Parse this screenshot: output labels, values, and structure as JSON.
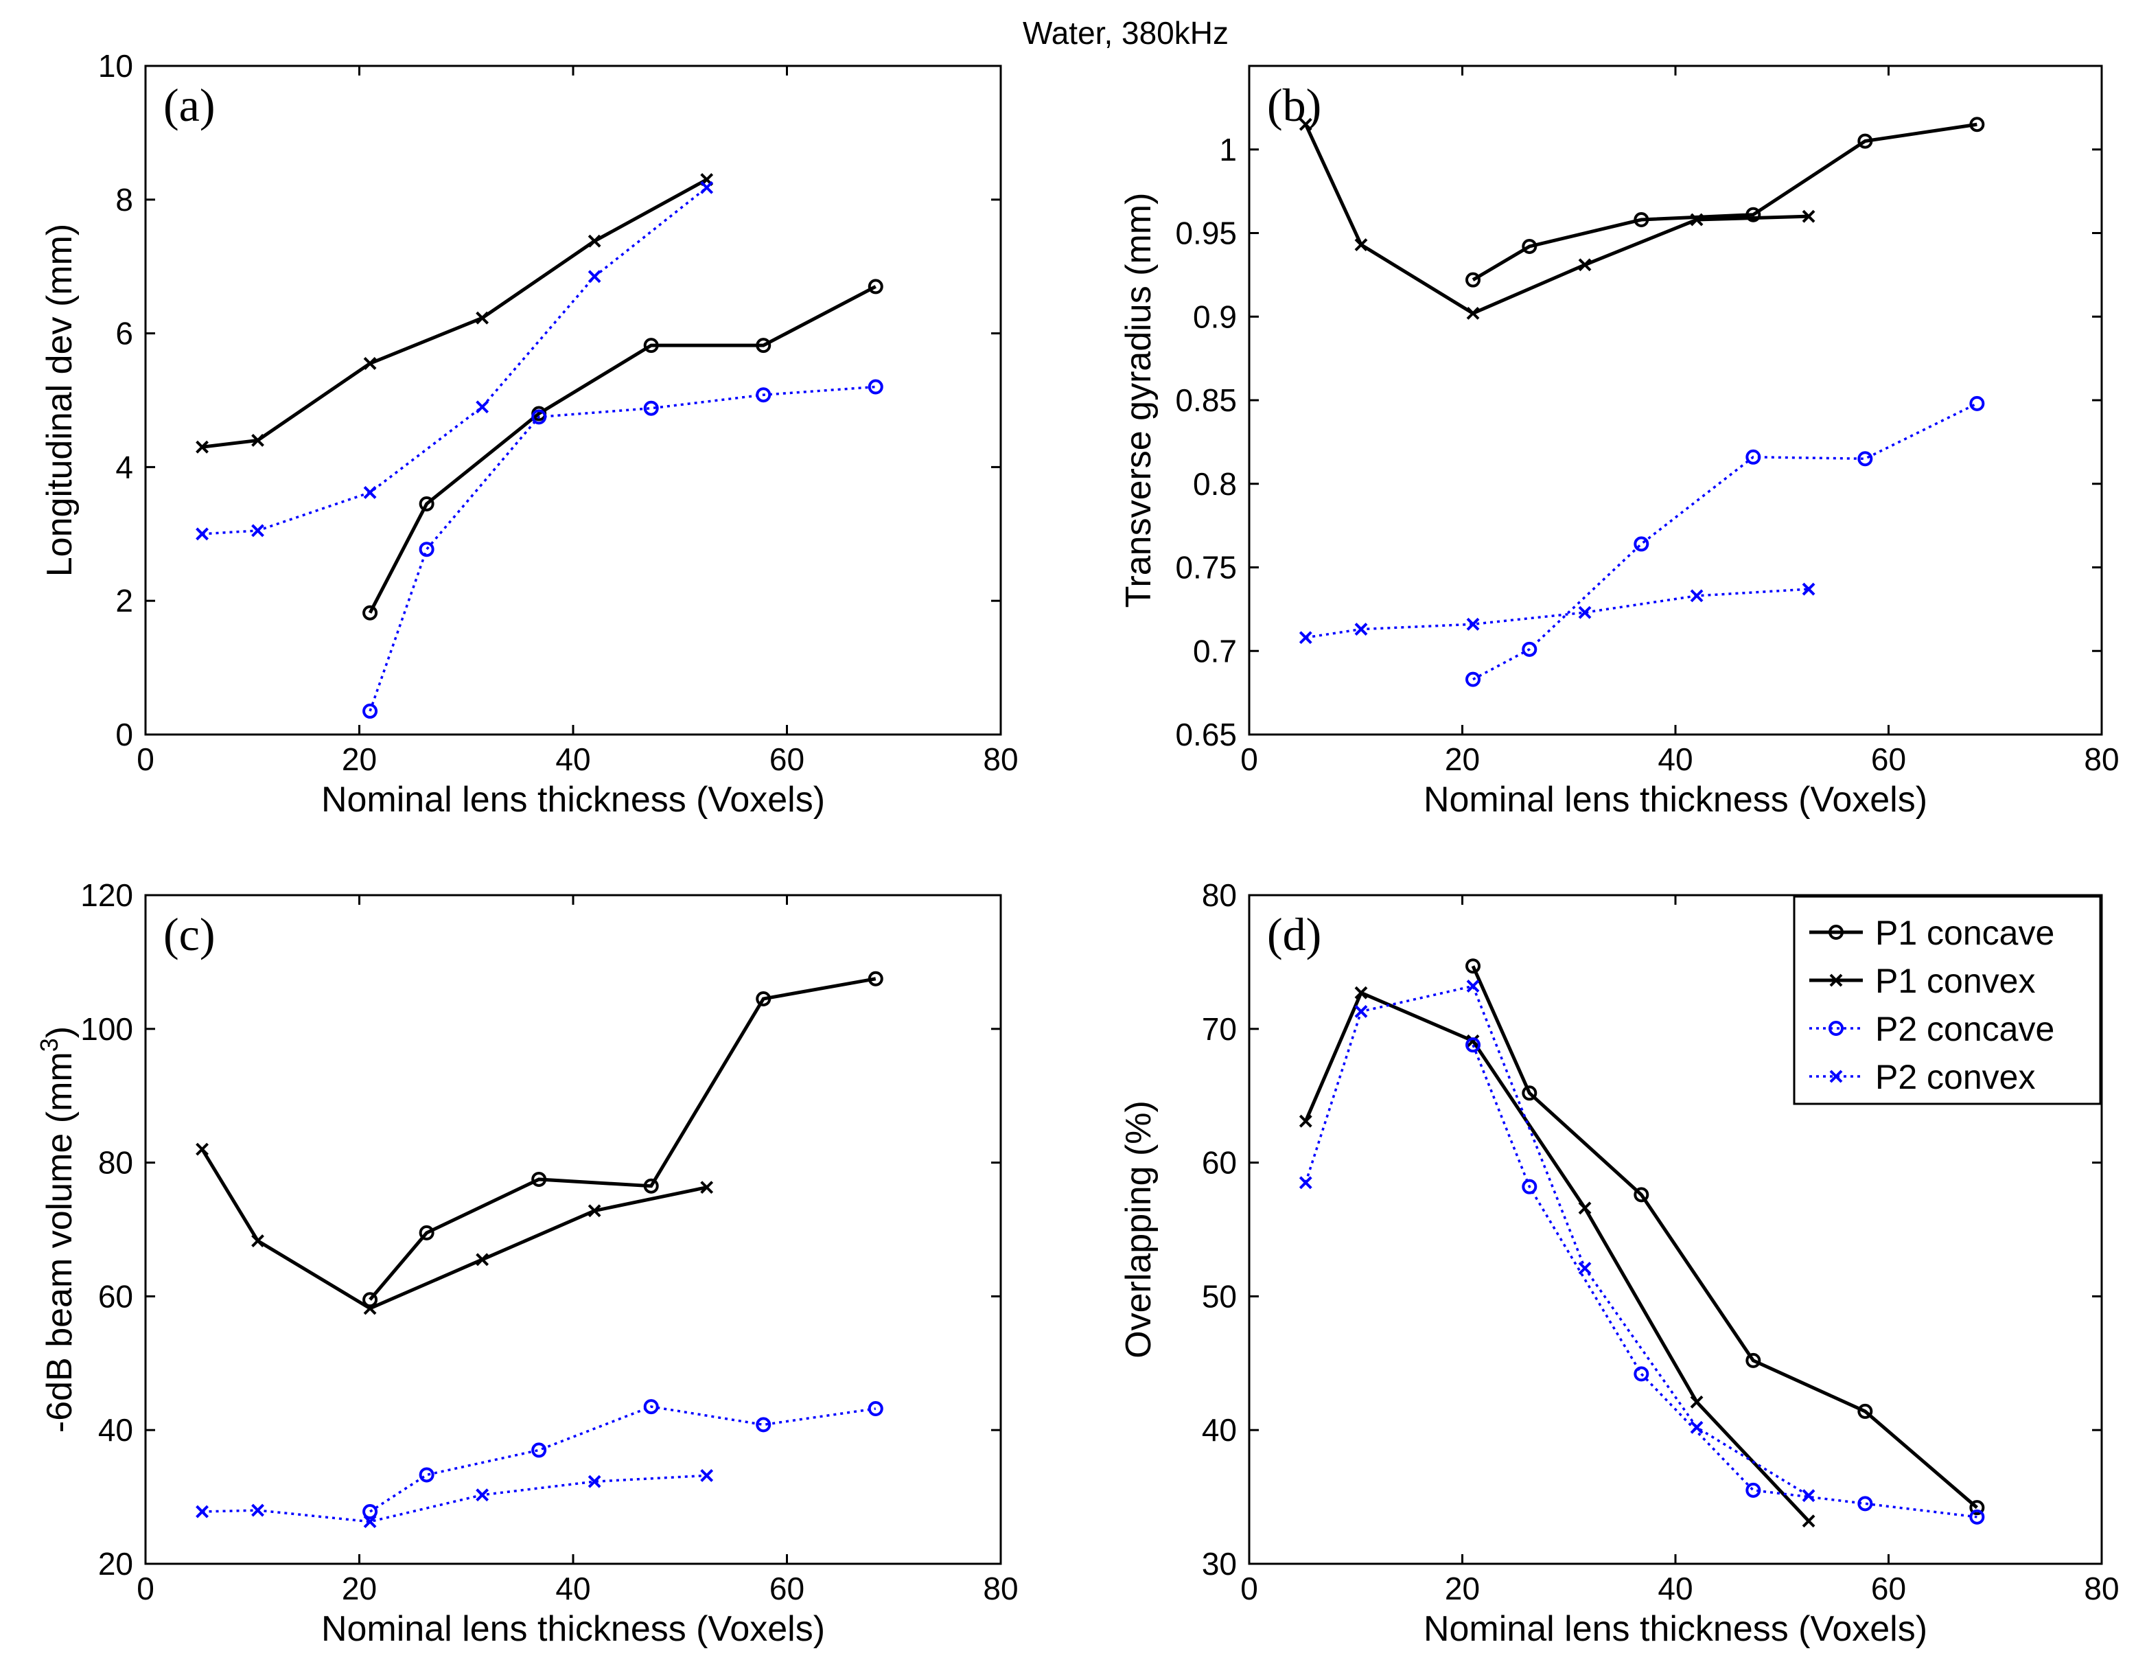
{
  "figure_title": "Water, 380kHz",
  "colors": {
    "P1": "#000000",
    "P2": "#0000ff"
  },
  "legend": {
    "placement": "top-right of panel (d)",
    "entries": [
      "P1 concave",
      "P1 convex",
      "P2 concave",
      "P2 convex"
    ]
  },
  "chart_data": [
    {
      "type": "line",
      "panel": "(a)",
      "xlabel": "Nominal lens thickness (Voxels)",
      "ylabel": "Longitudinal dev (mm)",
      "xlim": [
        0,
        80
      ],
      "ylim": [
        0,
        10
      ],
      "xticks": [
        0,
        20,
        40,
        60,
        80
      ],
      "yticks": [
        0,
        2,
        4,
        6,
        8,
        10
      ],
      "series": [
        {
          "name": "P1 concave",
          "marker": "o",
          "style": "solid",
          "color": "#000000",
          "x": [
            21,
            26.3,
            36.8,
            47.3,
            57.8,
            68.3
          ],
          "y": [
            1.82,
            3.45,
            4.8,
            5.82,
            5.82,
            6.7
          ]
        },
        {
          "name": "P1 convex",
          "marker": "x",
          "style": "solid",
          "color": "#000000",
          "x": [
            5.3,
            10.5,
            21,
            31.5,
            42,
            52.5
          ],
          "y": [
            4.3,
            4.4,
            5.55,
            6.23,
            7.38,
            8.3
          ]
        },
        {
          "name": "P2 concave",
          "marker": "o",
          "style": "dotted",
          "color": "#0000ff",
          "x": [
            21,
            26.3,
            36.8,
            47.3,
            57.8,
            68.3
          ],
          "y": [
            0.35,
            2.77,
            4.75,
            4.88,
            5.08,
            5.2
          ]
        },
        {
          "name": "P2 convex",
          "marker": "x",
          "style": "dotted",
          "color": "#0000ff",
          "x": [
            5.3,
            10.5,
            21,
            31.5,
            42,
            52.5
          ],
          "y": [
            3.0,
            3.05,
            3.62,
            4.9,
            6.85,
            8.18
          ]
        }
      ]
    },
    {
      "type": "line",
      "panel": "(b)",
      "xlabel": "Nominal lens thickness (Voxels)",
      "ylabel": "Transverse gyradius (mm)",
      "xlim": [
        0,
        80
      ],
      "ylim": [
        0.65,
        1.05
      ],
      "xticks": [
        0,
        20,
        40,
        60,
        80
      ],
      "yticks": [
        0.65,
        0.7,
        0.75,
        0.8,
        0.85,
        0.9,
        0.95,
        1
      ],
      "series": [
        {
          "name": "P1 concave",
          "marker": "o",
          "style": "solid",
          "color": "#000000",
          "x": [
            21,
            26.3,
            36.8,
            47.3,
            57.8,
            68.3
          ],
          "y": [
            0.922,
            0.942,
            0.958,
            0.961,
            1.005,
            1.015
          ]
        },
        {
          "name": "P1 convex",
          "marker": "x",
          "style": "solid",
          "color": "#000000",
          "x": [
            5.3,
            10.5,
            21,
            31.5,
            42,
            52.5
          ],
          "y": [
            1.015,
            0.943,
            0.902,
            0.931,
            0.958,
            0.96
          ]
        },
        {
          "name": "P2 concave",
          "marker": "o",
          "style": "dotted",
          "color": "#0000ff",
          "x": [
            21,
            26.3,
            36.8,
            47.3,
            57.8,
            68.3
          ],
          "y": [
            0.683,
            0.701,
            0.764,
            0.816,
            0.815,
            0.848
          ]
        },
        {
          "name": "P2 convex",
          "marker": "x",
          "style": "dotted",
          "color": "#0000ff",
          "x": [
            5.3,
            10.5,
            21,
            31.5,
            42,
            52.5
          ],
          "y": [
            0.708,
            0.713,
            0.716,
            0.723,
            0.733,
            0.737
          ]
        }
      ]
    },
    {
      "type": "line",
      "panel": "(c)",
      "xlabel": "Nominal lens thickness (Voxels)",
      "ylabel": "-6dB beam volume (mm",
      "ylabel_sup": "3",
      "ylabel_close": ")",
      "xlim": [
        0,
        80
      ],
      "ylim": [
        20,
        120
      ],
      "xticks": [
        0,
        20,
        40,
        60,
        80
      ],
      "yticks": [
        20,
        40,
        60,
        80,
        100,
        120
      ],
      "series": [
        {
          "name": "P1 concave",
          "marker": "o",
          "style": "solid",
          "color": "#000000",
          "x": [
            21,
            26.3,
            36.8,
            47.3,
            57.8,
            68.3
          ],
          "y": [
            59.5,
            69.5,
            77.5,
            76.5,
            104.5,
            107.5
          ]
        },
        {
          "name": "P1 convex",
          "marker": "x",
          "style": "solid",
          "color": "#000000",
          "x": [
            5.3,
            10.5,
            21,
            31.5,
            42,
            52.5
          ],
          "y": [
            82,
            68.3,
            58.2,
            65.5,
            72.8,
            76.3
          ]
        },
        {
          "name": "P2 concave",
          "marker": "o",
          "style": "dotted",
          "color": "#0000ff",
          "x": [
            21,
            26.3,
            36.8,
            47.3,
            57.8,
            68.3
          ],
          "y": [
            27.8,
            33.3,
            37,
            43.5,
            40.8,
            43.2
          ]
        },
        {
          "name": "P2 convex",
          "marker": "x",
          "style": "dotted",
          "color": "#0000ff",
          "x": [
            5.3,
            10.5,
            21,
            31.5,
            42,
            52.5
          ],
          "y": [
            27.8,
            28,
            26.3,
            30.3,
            32.3,
            33.2
          ]
        }
      ]
    },
    {
      "type": "line",
      "panel": "(d)",
      "xlabel": "Nominal lens thickness (Voxels)",
      "ylabel": "Overlapping (%)",
      "xlim": [
        0,
        80
      ],
      "ylim": [
        30,
        80
      ],
      "xticks": [
        0,
        20,
        40,
        60,
        80
      ],
      "yticks": [
        30,
        40,
        50,
        60,
        70,
        80
      ],
      "series": [
        {
          "name": "P1 concave",
          "marker": "o",
          "style": "solid",
          "color": "#000000",
          "x": [
            21,
            26.3,
            36.8,
            47.3,
            57.8,
            68.3
          ],
          "y": [
            74.7,
            65.2,
            57.6,
            45.2,
            41.4,
            34.2
          ]
        },
        {
          "name": "P1 convex",
          "marker": "x",
          "style": "solid",
          "color": "#000000",
          "x": [
            5.3,
            10.5,
            21,
            31.5,
            42,
            52.5
          ],
          "y": [
            63.1,
            72.7,
            69.1,
            56.6,
            42.1,
            33.2
          ]
        },
        {
          "name": "P2 concave",
          "marker": "o",
          "style": "dotted",
          "color": "#0000ff",
          "x": [
            21,
            26.3,
            36.8,
            47.3,
            57.8,
            68.3
          ],
          "y": [
            68.8,
            58.2,
            44.2,
            35.5,
            34.5,
            33.5
          ]
        },
        {
          "name": "P2 convex",
          "marker": "x",
          "style": "dotted",
          "color": "#0000ff",
          "x": [
            5.3,
            10.5,
            21,
            31.5,
            42,
            52.5
          ],
          "y": [
            58.5,
            71.3,
            73.2,
            52.1,
            40.2,
            35.1
          ]
        }
      ]
    }
  ]
}
